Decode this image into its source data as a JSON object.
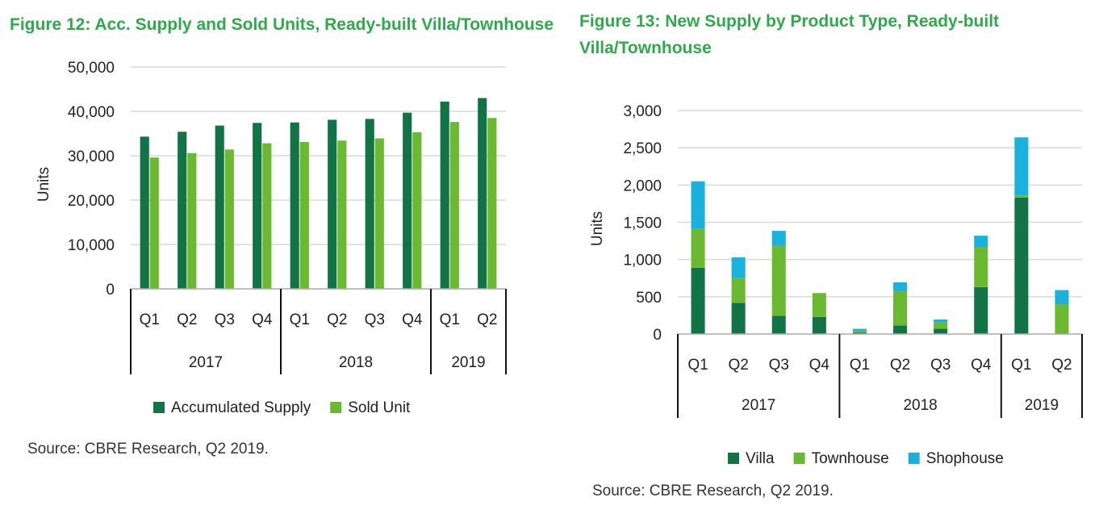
{
  "figure12": {
    "title": "Figure 12: Acc. Supply and Sold Units, Ready-built Villa/Townhouse",
    "source": "Source: CBRE Research, Q2 2019."
  },
  "figure13": {
    "title": "Figure 13: New Supply by Product Type, Ready-built Villa/Townhouse",
    "source": "Source: CBRE Research, Q2 2019."
  },
  "colors": {
    "title_green": "#2eaa4a",
    "accumulated_supply": "#127446",
    "sold_unit": "#6ab931",
    "villa": "#127446",
    "townhouse": "#6ab931",
    "shophouse": "#1ab1dc",
    "grid": "#d9d9d9"
  },
  "chart_data": [
    {
      "type": "bar",
      "title": "Figure 12: Acc. Supply and Sold Units, Ready-built Villa/Townhouse",
      "ylabel": "Units",
      "ylim": [
        0,
        50000
      ],
      "yticks": [
        0,
        10000,
        20000,
        30000,
        40000,
        50000
      ],
      "ytick_labels": [
        "0",
        "10,000",
        "20,000",
        "30,000",
        "40,000",
        "50,000"
      ],
      "categories": [
        "Q1",
        "Q2",
        "Q3",
        "Q4",
        "Q1",
        "Q2",
        "Q3",
        "Q4",
        "Q1",
        "Q2"
      ],
      "groups": [
        {
          "label": "2017",
          "count": 4
        },
        {
          "label": "2018",
          "count": 4
        },
        {
          "label": "2019",
          "count": 2
        }
      ],
      "series": [
        {
          "name": "Accumulated Supply",
          "color": "#127446",
          "values": [
            34300,
            35400,
            36800,
            37400,
            37500,
            38100,
            38300,
            39700,
            42200,
            43000
          ]
        },
        {
          "name": "Sold Unit",
          "color": "#6ab931",
          "values": [
            29600,
            30600,
            31400,
            32800,
            33100,
            33400,
            33900,
            35300,
            37600,
            38500
          ]
        }
      ],
      "grid": true,
      "legend": "bottom"
    },
    {
      "type": "bar",
      "stacked": true,
      "title": "Figure 13: New Supply by Product Type, Ready-built Villa/Townhouse",
      "ylabel": "Units",
      "ylim": [
        0,
        3000
      ],
      "yticks": [
        0,
        500,
        1000,
        1500,
        2000,
        2500,
        3000
      ],
      "ytick_labels": [
        "0",
        "500",
        "1,000",
        "1,500",
        "2,000",
        "2,500",
        "3,000"
      ],
      "categories": [
        "Q1",
        "Q2",
        "Q3",
        "Q4",
        "Q1",
        "Q2",
        "Q3",
        "Q4",
        "Q1",
        "Q2"
      ],
      "groups": [
        {
          "label": "2017",
          "count": 4
        },
        {
          "label": "2018",
          "count": 4
        },
        {
          "label": "2019",
          "count": 2
        }
      ],
      "series": [
        {
          "name": "Villa",
          "color": "#127446",
          "values": [
            890,
            420,
            245,
            230,
            20,
            115,
            70,
            630,
            1830,
            10
          ]
        },
        {
          "name": "Townhouse",
          "color": "#6ab931",
          "values": [
            520,
            330,
            940,
            320,
            20,
            460,
            85,
            540,
            30,
            390
          ]
        },
        {
          "name": "Shophouse",
          "color": "#1ab1dc",
          "values": [
            640,
            280,
            200,
            0,
            30,
            120,
            40,
            150,
            780,
            190
          ]
        }
      ],
      "grid": true,
      "legend": "bottom"
    }
  ]
}
